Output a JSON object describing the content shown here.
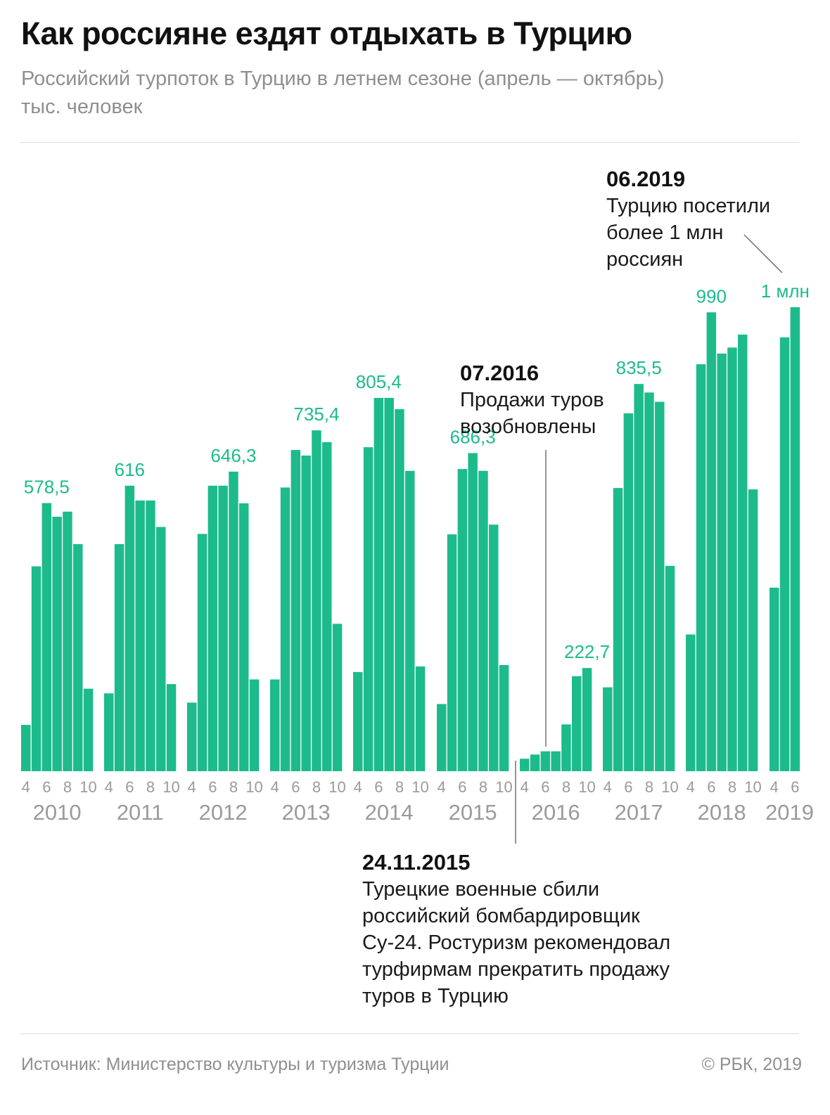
{
  "header": {
    "title": "Как россияне ездят отдыхать в Турцию",
    "subtitle_line1": "Российский турпоток в Турцию в летнем сезоне (апрель — октябрь)",
    "subtitle_line2": "тыс. человек"
  },
  "annotations": {
    "a2019": {
      "date": "06.2019",
      "line1": "Турцию посетили",
      "line2": "более 1 млн",
      "line3": "россиян"
    },
    "a2016": {
      "date": "07.2016",
      "line1": "Продажи туров",
      "line2": "возобновлены"
    },
    "a2015": {
      "date": "24.11.2015",
      "line1": "Турецкие военные сбили",
      "line2": "российский бомбардировщик",
      "line3": "Су-24. Ростуризм рекомендовал",
      "line4": "турфирмам прекратить продажу",
      "line5": "туров в Турцию"
    }
  },
  "footer": {
    "source": "Источник: Министерство культуры и туризма Турции",
    "copyright": "© РБК, 2019"
  },
  "colors": {
    "bar": "#1dbb8c",
    "label": "#1dbb8c",
    "axis_text": "#9a9a9a",
    "leader": "#707070"
  },
  "chart_data": {
    "type": "bar",
    "title": "Российский турпоток в Турцию в летнем сезоне (апрель — октябрь)",
    "ylabel": "тыс. человек",
    "ylim": [
      0,
      1100
    ],
    "grid": false,
    "month_ticks": [
      "4",
      "6",
      "8",
      "10"
    ],
    "groups": [
      {
        "year": "2010",
        "months": [
          4,
          5,
          6,
          7,
          8,
          9,
          10
        ],
        "values": [
          100,
          442,
          578.5,
          549,
          560,
          490,
          178
        ],
        "peak_label": "578,5",
        "peak_index": 2
      },
      {
        "year": "2011",
        "months": [
          4,
          5,
          6,
          7,
          8,
          9,
          10
        ],
        "values": [
          168,
          490,
          616,
          584,
          584,
          527,
          188
        ],
        "peak_label": "616",
        "peak_index": 2
      },
      {
        "year": "2012",
        "months": [
          4,
          5,
          6,
          7,
          8,
          9,
          10
        ],
        "values": [
          148,
          512,
          616,
          616,
          646.3,
          578,
          198
        ],
        "peak_label": "646,3",
        "peak_index": 4
      },
      {
        "year": "2013",
        "months": [
          4,
          5,
          6,
          7,
          8,
          9,
          10
        ],
        "values": [
          198,
          612,
          693,
          681,
          735.4,
          710,
          318
        ],
        "peak_label": "735,4",
        "peak_index": 4
      },
      {
        "year": "2014",
        "months": [
          4,
          5,
          6,
          7,
          8,
          9,
          10
        ],
        "values": [
          214,
          699,
          805.4,
          805.4,
          781,
          648,
          226
        ],
        "peak_label": "805,4",
        "peak_index": 2
      },
      {
        "year": "2015",
        "months": [
          4,
          5,
          6,
          7,
          8,
          9,
          10
        ],
        "values": [
          145,
          511,
          652,
          686.3,
          648,
          532,
          229
        ],
        "peak_label": "686,3",
        "peak_index": 3
      },
      {
        "year": "2016",
        "months": [
          4,
          5,
          6,
          7,
          8,
          9,
          10
        ],
        "values": [
          27,
          36,
          43,
          43,
          101,
          205,
          222.7
        ],
        "peak_label": "222,7",
        "peak_index": 6
      },
      {
        "year": "2017",
        "months": [
          4,
          5,
          6,
          7,
          8,
          9,
          10
        ],
        "values": [
          181,
          611,
          772,
          835.5,
          817,
          797,
          443
        ],
        "peak_label": "835,5",
        "peak_index": 3
      },
      {
        "year": "2018",
        "months": [
          4,
          5,
          6,
          7,
          8,
          9,
          10
        ],
        "values": [
          295,
          878,
          990,
          901,
          914,
          942,
          608
        ],
        "peak_label": "990",
        "peak_index": 2
      },
      {
        "year": "2019",
        "months": [
          4,
          5,
          6
        ],
        "values": [
          396,
          936,
          1001
        ],
        "peak_label": "1 млн",
        "peak_index": 2
      }
    ]
  }
}
